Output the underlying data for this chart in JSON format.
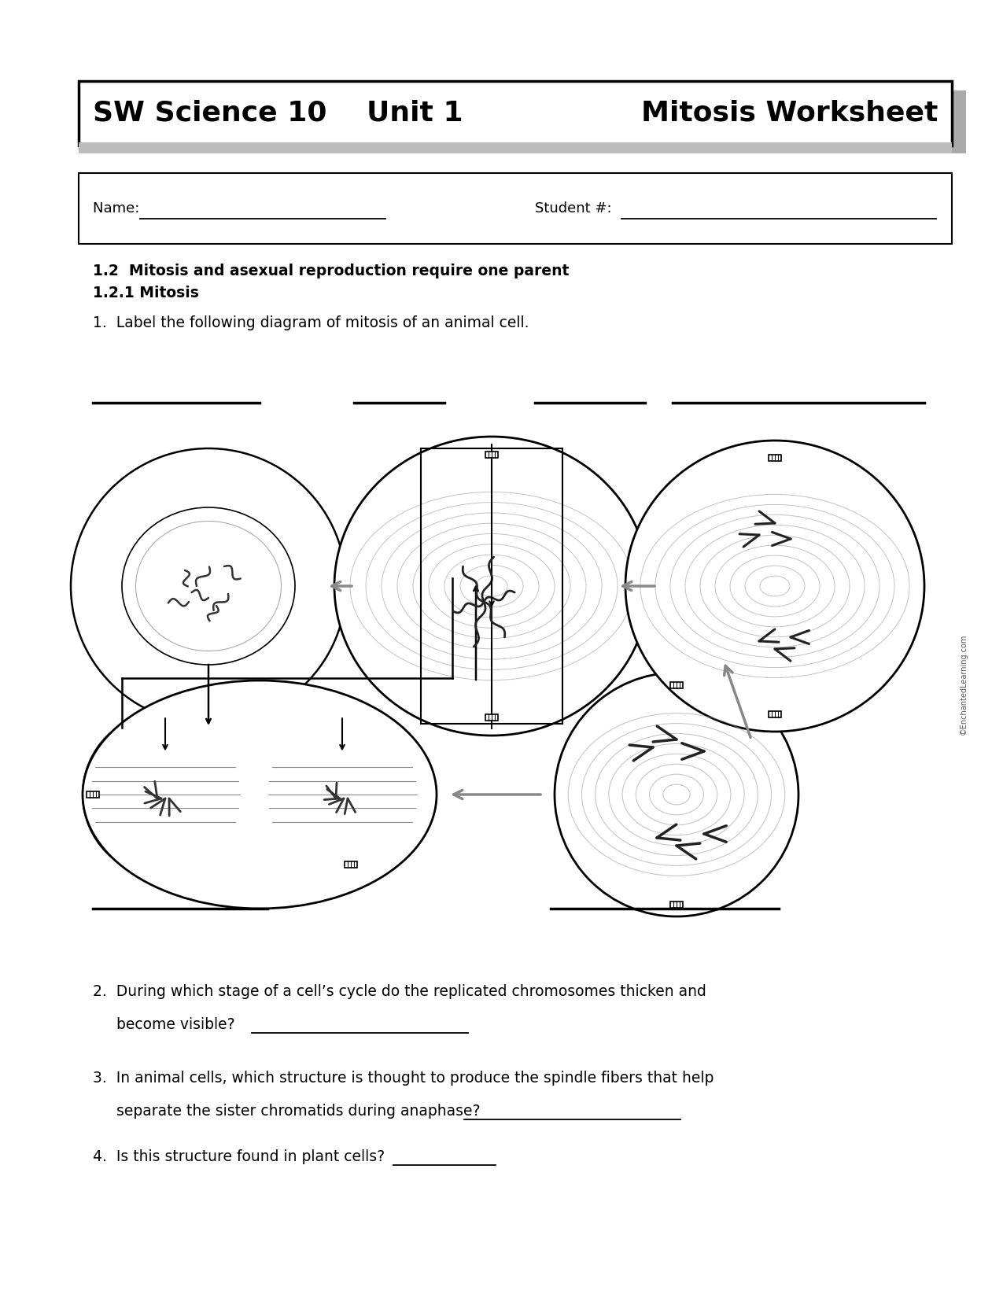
{
  "bg_color": "#ffffff",
  "page_width": 12.75,
  "page_height": 16.5,
  "header_text_left": "SW Science 10    Unit 1",
  "header_text_right": "Mitosis Worksheet",
  "header_font_size": 26,
  "name_label": "Name: ",
  "student_label": "Student #: ",
  "section_title1": "1.2  Mitosis and asexual reproduction require one parent",
  "section_title2": "1.2.1 Mitosis",
  "question1": "1.  Label the following diagram of mitosis of an animal cell.",
  "q2_line1": "2.  During which stage of a cell’s cycle do the replicated chromosomes thicken and",
  "q2_line2": "     become visible?  ",
  "q3_line1": "3.  In animal cells, which structure is thought to produce the spindle fibers that help",
  "q3_line2": "     separate the sister chromatids during anaphase?  ",
  "question4": "4.  Is this structure found in plant cells?  ",
  "body_font_size": 13.5,
  "bold_font_size": 13.5,
  "watermark": "©EnchantedLearning.com",
  "header_shadow_color": "#aaaaaa",
  "header_box_color": "#000000"
}
